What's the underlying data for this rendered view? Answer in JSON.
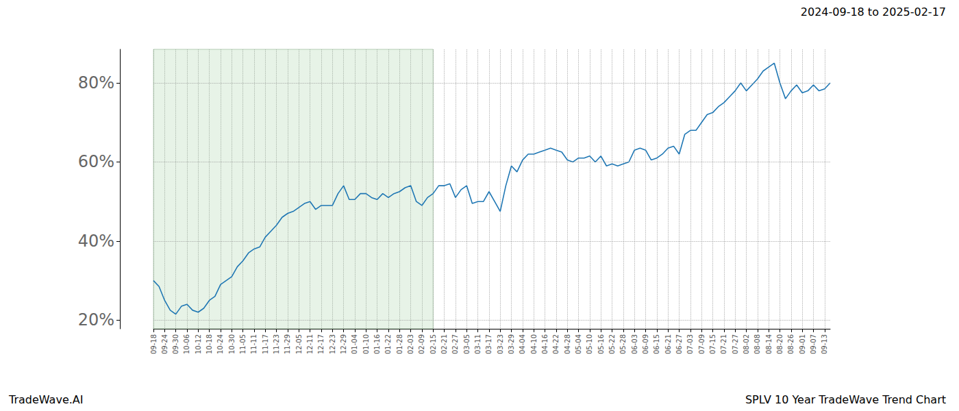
{
  "chart_data": {
    "type": "line",
    "title": "2024-09-18 to 2025-02-17",
    "footer_left": "TradeWave.AI",
    "footer_right": "SPLV 10 Year TradeWave Trend Chart",
    "categories": [
      "09-18",
      null,
      "09-24",
      null,
      "09-30",
      null,
      "10-06",
      null,
      "10-12",
      null,
      "10-18",
      null,
      "10-24",
      null,
      "10-30",
      null,
      "11-05",
      null,
      "11-11",
      null,
      "11-17",
      null,
      "11-23",
      null,
      "11-29",
      null,
      "12-05",
      null,
      "12-11",
      null,
      "12-17",
      null,
      "12-23",
      null,
      "12-29",
      null,
      "01-04",
      null,
      "01-10",
      null,
      "01-16",
      null,
      "01-22",
      null,
      "01-28",
      null,
      "02-03",
      null,
      "02-09",
      null,
      "02-15",
      null,
      "02-21",
      null,
      "02-27",
      null,
      "03-05",
      null,
      "03-11",
      null,
      "03-17",
      null,
      "03-23",
      null,
      "03-29",
      null,
      "04-04",
      null,
      "04-10",
      null,
      "04-16",
      null,
      "04-22",
      null,
      "04-28",
      null,
      "05-04",
      null,
      "05-10",
      null,
      "05-16",
      null,
      "05-22",
      null,
      "05-28",
      null,
      "06-03",
      null,
      "06-09",
      null,
      "06-15",
      null,
      "06-21",
      null,
      "06-27",
      null,
      "07-03",
      null,
      "07-09",
      null,
      "07-15",
      null,
      "07-21",
      null,
      "07-27",
      null,
      "08-02",
      null,
      "08-08",
      null,
      "08-14",
      null,
      "08-20",
      null,
      "08-26",
      null,
      "09-01",
      null,
      "09-07",
      null,
      "09-13",
      null
    ],
    "values": [
      30,
      28.5,
      25,
      22.5,
      21.5,
      23.5,
      24,
      22.5,
      22,
      23,
      25,
      26,
      29,
      30,
      31,
      33.5,
      35,
      37,
      38,
      38.5,
      41,
      42.5,
      44,
      46,
      47,
      47.5,
      48.5,
      49.5,
      50,
      48,
      49,
      49,
      49,
      52,
      54,
      50.5,
      50.5,
      52,
      52,
      51,
      50.5,
      52,
      51,
      52,
      52.5,
      53.5,
      54,
      50,
      49,
      51,
      52,
      54,
      54,
      54.5,
      51,
      53,
      54,
      49.5,
      50,
      50,
      52.5,
      50,
      47.5,
      54,
      59,
      57.5,
      60.5,
      62,
      62,
      62.5,
      63,
      63.5,
      63,
      62.5,
      60.5,
      60,
      61,
      61,
      61.5,
      60,
      61.5,
      59,
      59.5,
      59,
      59.5,
      60,
      63,
      63.5,
      63,
      60.5,
      61,
      62,
      63.5,
      64,
      62,
      67,
      68,
      68,
      70,
      72,
      72.5,
      74,
      75,
      76.5,
      78,
      80,
      78,
      79.5,
      81,
      83,
      84,
      85,
      80,
      76,
      78,
      79.5,
      77.5,
      78,
      79.5,
      78,
      78.5,
      80
    ],
    "color": "#1f77b4",
    "shaded_range": {
      "from": 0,
      "to": 50
    },
    "ylim": [
      17.8,
      88.5
    ],
    "yticks": [
      {
        "value": 20,
        "label": "20%"
      },
      {
        "value": 40,
        "label": "40%"
      },
      {
        "value": 60,
        "label": "60%"
      },
      {
        "value": 80,
        "label": "80%"
      }
    ],
    "grid": true
  }
}
